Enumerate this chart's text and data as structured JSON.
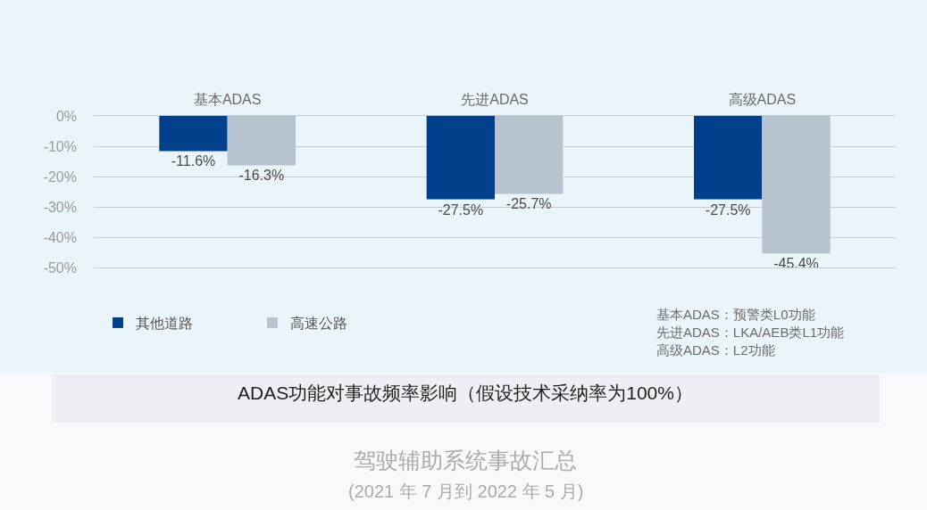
{
  "chart_data": {
    "type": "bar",
    "title": "ADAS功能对事故频率影响（假设技术采纳率为100%）",
    "subtitle": "驾驶辅助系统事故汇总",
    "annotations": [
      "基本ADAS：预警类L0功能",
      "先进ADAS：LKA/AEB类L1功能",
      "高级ADAS：L2功能",
      "(2021 年 7 月到 2022 年 5 月)"
    ],
    "categories": [
      "基本ADAS",
      "先进ADAS",
      "高级ADAS"
    ],
    "series": [
      {
        "name": "其他道路",
        "color": "#00408a",
        "values": [
          -11.6,
          -27.5,
          -27.5
        ],
        "value_labels": [
          "-11.6%",
          "-27.5%",
          "-27.5%"
        ]
      },
      {
        "name": "高速公路",
        "color": "#b7c3ce",
        "values": [
          -16.3,
          -25.7,
          -45.4
        ],
        "value_labels": [
          "-16.3%",
          "-25.7%",
          "-45.4%"
        ]
      }
    ],
    "ylim": [
      -50,
      0
    ],
    "yticks": [
      {
        "value": 0,
        "label": "0%"
      },
      {
        "value": -10,
        "label": "-10%"
      },
      {
        "value": -20,
        "label": "-20%"
      },
      {
        "value": -30,
        "label": "-30%"
      },
      {
        "value": -40,
        "label": "-40%"
      },
      {
        "value": -50,
        "label": "-50%"
      }
    ],
    "grid": "y",
    "legend": "bottom left"
  }
}
